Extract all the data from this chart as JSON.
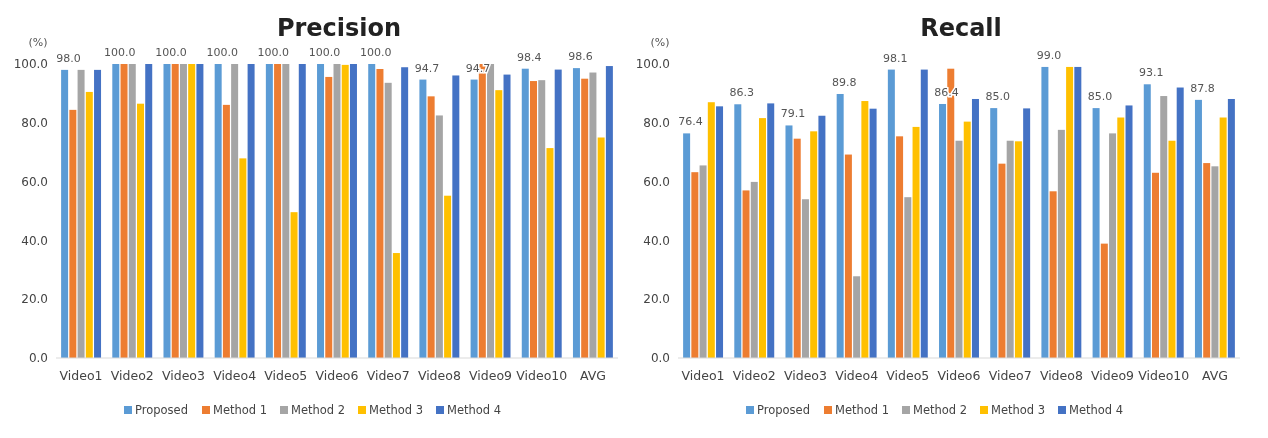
{
  "chart_data": [
    {
      "type": "bar",
      "title": "Precision",
      "ylabel": "(%)",
      "categories": [
        "Video1",
        "Video2",
        "Video3",
        "Video4",
        "Video5",
        "Video6",
        "Video7",
        "Video8",
        "Video9",
        "Video10",
        "AVG"
      ],
      "ylim": [
        0,
        100
      ],
      "yticks": [
        {
          "value": 0,
          "label": "0.0"
        },
        {
          "value": 20,
          "label": "20.0"
        },
        {
          "value": 40,
          "label": "40.0"
        },
        {
          "value": 60,
          "label": "60.0"
        },
        {
          "value": 80,
          "label": "80.0"
        },
        {
          "value": 100,
          "label": "100.0"
        }
      ],
      "legend": "bottom",
      "series": [
        {
          "name": "Proposed",
          "color": "#5b9bd5",
          "values": [
            98.0,
            100.0,
            100.0,
            100.0,
            100.0,
            100.0,
            100.0,
            94.7,
            94.7,
            98.4,
            98.6
          ],
          "value_labels": [
            "98.0",
            "100.0",
            "100.0",
            "100.0",
            "100.0",
            "100.0",
            "100.0",
            "94.7",
            "94.7",
            "98.4",
            "98.6"
          ]
        },
        {
          "name": "Method 1",
          "color": "#ed7d31",
          "values": [
            84.4,
            100,
            100,
            86.1,
            100,
            95.6,
            98.3,
            89.0,
            100,
            94.2,
            95.0
          ]
        },
        {
          "name": "Method 2",
          "color": "#a5a5a5",
          "values": [
            98,
            100,
            100,
            100,
            100,
            100,
            93.6,
            82.5,
            100,
            94.5,
            97.1
          ]
        },
        {
          "name": "Method 3",
          "color": "#ffc000",
          "values": [
            90.5,
            86.5,
            100,
            67.9,
            49.6,
            99.7,
            35.7,
            55.2,
            91.1,
            71.4,
            75.0
          ]
        },
        {
          "name": "Method 4",
          "color": "#4472c4",
          "values": [
            98,
            100,
            100,
            100,
            100,
            100,
            98.9,
            96.1,
            96.4,
            98.1,
            99.3
          ]
        }
      ]
    },
    {
      "type": "bar",
      "title": "Recall",
      "ylabel": "(%)",
      "categories": [
        "Video1",
        "Video2",
        "Video3",
        "Video4",
        "Video5",
        "Video6",
        "Video7",
        "Video8",
        "Video9",
        "Video10",
        "AVG"
      ],
      "ylim": [
        0,
        100
      ],
      "yticks": [
        {
          "value": 0,
          "label": "0.0"
        },
        {
          "value": 20,
          "label": "20.0"
        },
        {
          "value": 40,
          "label": "40.0"
        },
        {
          "value": 60,
          "label": "60.0"
        },
        {
          "value": 80,
          "label": "80.0"
        },
        {
          "value": 100,
          "label": "100.0"
        }
      ],
      "legend": "bottom",
      "series": [
        {
          "name": "Proposed",
          "color": "#5b9bd5",
          "values": [
            76.4,
            86.3,
            79.1,
            89.8,
            98.1,
            86.4,
            85.0,
            99.0,
            85.0,
            93.1,
            87.8
          ],
          "value_labels": [
            "76.4",
            "86.3",
            "79.1",
            "89.8",
            "98.1",
            "86.4",
            "85.0",
            "99.0",
            "85.0",
            "93.1",
            "87.8"
          ]
        },
        {
          "name": "Method 1",
          "color": "#ed7d31",
          "values": [
            63.2,
            57.0,
            74.6,
            69.2,
            75.4,
            98.4,
            66.1,
            56.7,
            38.9,
            63.0,
            66.3
          ]
        },
        {
          "name": "Method 2",
          "color": "#a5a5a5",
          "values": [
            65.5,
            59.9,
            54.0,
            27.8,
            54.7,
            73.9,
            73.9,
            77.6,
            76.4,
            89.1,
            65.2
          ]
        },
        {
          "name": "Method 3",
          "color": "#ffc000",
          "values": [
            87.0,
            81.6,
            77.1,
            87.4,
            78.6,
            80.4,
            73.7,
            99.0,
            81.8,
            73.9,
            81.8
          ]
        },
        {
          "name": "Method 4",
          "color": "#4472c4",
          "values": [
            85.6,
            86.6,
            82.4,
            84.8,
            98.1,
            88.1,
            84.9,
            99.0,
            85.9,
            92.0,
            88.1
          ]
        }
      ]
    }
  ]
}
